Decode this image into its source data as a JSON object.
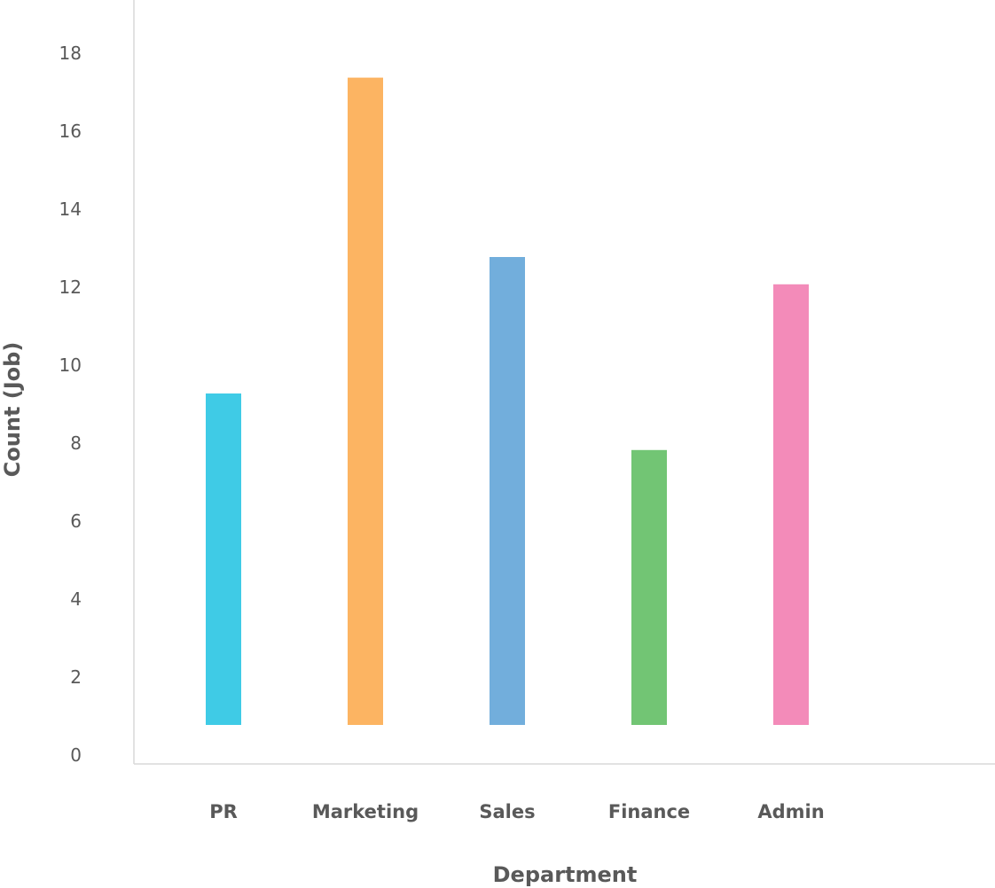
{
  "chart_data": {
    "type": "bar",
    "categories": [
      "PR",
      "Marketing",
      "Sales",
      "Finance",
      "Admin"
    ],
    "values": [
      8.5,
      16.6,
      12.0,
      7.05,
      11.3
    ],
    "colors": [
      "#3fcbe6",
      "#fcb462",
      "#72aedc",
      "#72c574",
      "#f38bb9"
    ],
    "xlabel": "Department",
    "ylabel": "Count (Job)",
    "ylim": [
      0,
      18
    ],
    "yticks": [
      "0",
      "2",
      "4",
      "6",
      "8",
      "10",
      "12",
      "14",
      "16",
      "18"
    ],
    "grid": false,
    "legend": "none"
  }
}
